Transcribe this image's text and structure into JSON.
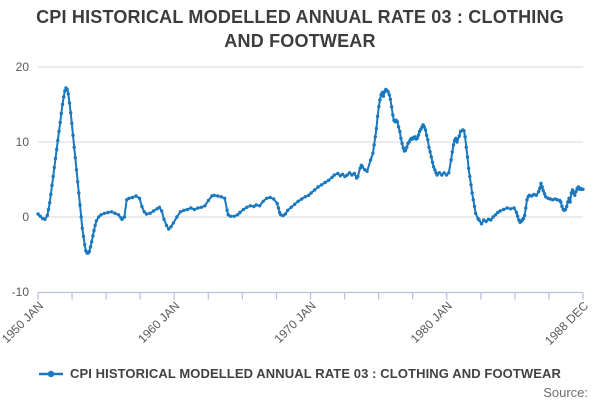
{
  "header": {
    "title_line1": "CPI HISTORICAL MODELLED ANNUAL RATE 03 : CLOTHING",
    "title_line2": "AND FOOTWEAR"
  },
  "legend": {
    "label": "CPI HISTORICAL MODELLED ANNUAL RATE 03 : CLOTHING AND FOOTWEAR"
  },
  "source_label": "Source:",
  "chart_data": {
    "type": "line",
    "title": "CPI HISTORICAL MODELLED ANNUAL RATE 03 : CLOTHING AND FOOTWEAR",
    "x_axis": {
      "start_label": "1950 JAN",
      "end_label": "1988 DEC",
      "months_total": 467,
      "tick_count": 17,
      "tick_labels_by_index": {
        "0": "1950 JAN",
        "4": "1960 JAN",
        "8": "1970 JAN",
        "12": "1980 JAN",
        "16": "1988 DEC"
      }
    },
    "y_axis": {
      "min": -10,
      "max": 20,
      "tick_values": [
        20,
        10,
        0,
        -10
      ],
      "gridline_values": [
        20,
        10,
        0
      ]
    },
    "colors": {
      "line": "#1978be",
      "grid": "#d9d9d9",
      "axis": "#b7c3dd",
      "axis_label": "#595959"
    },
    "series": [
      {
        "name": "CPI HISTORICAL MODELLED ANNUAL RATE 03 : CLOTHING AND FOOTWEAR",
        "x_unit": "months since 1950 JAN",
        "points": [
          [
            0,
            0.4
          ],
          [
            2,
            0.1
          ],
          [
            4,
            -0.2
          ],
          [
            6,
            -0.3
          ],
          [
            8,
            0.2
          ],
          [
            9,
            1
          ],
          [
            10,
            1.9
          ],
          [
            11,
            3
          ],
          [
            12,
            4.2
          ],
          [
            13,
            5.4
          ],
          [
            14,
            6.6
          ],
          [
            15,
            7.8
          ],
          [
            16,
            9
          ],
          [
            17,
            10.2
          ],
          [
            18,
            11.4
          ],
          [
            19,
            12.6
          ],
          [
            20,
            13.8
          ],
          [
            21,
            15
          ],
          [
            22,
            16
          ],
          [
            23,
            16.8
          ],
          [
            24,
            17.2
          ],
          [
            25,
            17
          ],
          [
            26,
            16.4
          ],
          [
            27,
            15.2
          ],
          [
            28,
            13.9
          ],
          [
            29,
            12.5
          ],
          [
            30,
            10.9
          ],
          [
            31,
            9.3
          ],
          [
            32,
            7.9
          ],
          [
            33,
            6.3
          ],
          [
            34,
            4.7
          ],
          [
            35,
            3.2
          ],
          [
            36,
            1.6
          ],
          [
            37,
            0
          ],
          [
            38,
            -1.5
          ],
          [
            39,
            -2.6
          ],
          [
            40,
            -3.7
          ],
          [
            41,
            -4.5
          ],
          [
            42,
            -4.8
          ],
          [
            43,
            -4.8
          ],
          [
            44,
            -4.6
          ],
          [
            45,
            -4
          ],
          [
            46,
            -3.3
          ],
          [
            47,
            -2.5
          ],
          [
            48,
            -1.8
          ],
          [
            49,
            -1.1
          ],
          [
            50,
            -0.5
          ],
          [
            52,
            0
          ],
          [
            54,
            0.3
          ],
          [
            57,
            0.5
          ],
          [
            60,
            0.6
          ],
          [
            63,
            0.7
          ],
          [
            66,
            0.5
          ],
          [
            69,
            0.3
          ],
          [
            71,
            -0.1
          ],
          [
            72,
            -0.3
          ],
          [
            74,
            0
          ],
          [
            76,
            2.3
          ],
          [
            78,
            2.5
          ],
          [
            81,
            2.6
          ],
          [
            84,
            2.8
          ],
          [
            87,
            2.5
          ],
          [
            89,
            1.4
          ],
          [
            91,
            0.7
          ],
          [
            93,
            0.4
          ],
          [
            96,
            0.5
          ],
          [
            99,
            0.8
          ],
          [
            102,
            1.1
          ],
          [
            104,
            1.3
          ],
          [
            106,
            0.8
          ],
          [
            108,
            -0.3
          ],
          [
            110,
            -1.1
          ],
          [
            112,
            -1.6
          ],
          [
            114,
            -1.3
          ],
          [
            116,
            -0.8
          ],
          [
            119,
            0
          ],
          [
            122,
            0.7
          ],
          [
            125,
            0.9
          ],
          [
            128,
            1
          ],
          [
            131,
            1.2
          ],
          [
            134,
            1
          ],
          [
            137,
            1.2
          ],
          [
            140,
            1.3
          ],
          [
            143,
            1.5
          ],
          [
            146,
            2.2
          ],
          [
            149,
            2.8
          ],
          [
            151,
            2.9
          ],
          [
            154,
            2.8
          ],
          [
            157,
            2.7
          ],
          [
            160,
            2.5
          ],
          [
            162,
            0.9
          ],
          [
            163,
            0.3
          ],
          [
            165,
            0.1
          ],
          [
            168,
            0.1
          ],
          [
            171,
            0.3
          ],
          [
            173,
            0.6
          ],
          [
            176,
            1
          ],
          [
            179,
            1.3
          ],
          [
            182,
            1.5
          ],
          [
            185,
            1.4
          ],
          [
            187,
            1.6
          ],
          [
            190,
            1.5
          ],
          [
            193,
            2.1
          ],
          [
            196,
            2.5
          ],
          [
            199,
            2.6
          ],
          [
            202,
            2.4
          ],
          [
            205,
            1.8
          ],
          [
            206,
            1.2
          ],
          [
            207,
            0.6
          ],
          [
            208,
            0.3
          ],
          [
            210,
            0.2
          ],
          [
            212,
            0.4
          ],
          [
            214,
            0.9
          ],
          [
            217,
            1.3
          ],
          [
            220,
            1.7
          ],
          [
            223,
            2.1
          ],
          [
            226,
            2.4
          ],
          [
            229,
            2.7
          ],
          [
            232,
            2.9
          ],
          [
            234,
            3.2
          ],
          [
            237,
            3.6
          ],
          [
            240,
            4
          ],
          [
            243,
            4.3
          ],
          [
            246,
            4.6
          ],
          [
            249,
            4.9
          ],
          [
            252,
            5.3
          ],
          [
            254,
            5.6
          ],
          [
            257,
            5.8
          ],
          [
            259,
            5.5
          ],
          [
            261,
            5.7
          ],
          [
            263,
            5.4
          ],
          [
            265,
            5.6
          ],
          [
            267,
            5.9
          ],
          [
            269,
            5.6
          ],
          [
            271,
            5.8
          ],
          [
            273,
            5.2
          ],
          [
            274,
            5.4
          ],
          [
            276,
            6.5
          ],
          [
            277,
            6.9
          ],
          [
            278,
            6.7
          ],
          [
            280,
            6.3
          ],
          [
            282,
            6.1
          ],
          [
            285,
            7.6
          ],
          [
            287,
            8.5
          ],
          [
            288,
            9.6
          ],
          [
            289,
            10.7
          ],
          [
            290,
            11.8
          ],
          [
            291,
            13.4
          ],
          [
            292,
            14.7
          ],
          [
            293,
            15.6
          ],
          [
            294,
            16.3
          ],
          [
            295,
            16.6
          ],
          [
            296,
            16.1
          ],
          [
            297,
            16.7
          ],
          [
            298,
            17
          ],
          [
            299,
            16.9
          ],
          [
            300,
            16.7
          ],
          [
            301,
            16.3
          ],
          [
            302,
            15.7
          ],
          [
            303,
            14.7
          ],
          [
            304,
            13.6
          ],
          [
            305,
            12.9
          ],
          [
            306,
            12.7
          ],
          [
            307,
            12.9
          ],
          [
            308,
            12.7
          ],
          [
            309,
            12
          ],
          [
            310,
            11.4
          ],
          [
            311,
            10.5
          ],
          [
            312,
            9.8
          ],
          [
            313,
            9.2
          ],
          [
            314,
            8.8
          ],
          [
            315,
            8.9
          ],
          [
            316,
            9.3
          ],
          [
            317,
            9.8
          ],
          [
            318,
            10
          ],
          [
            319,
            10.3
          ],
          [
            320,
            10.5
          ],
          [
            321,
            10.4
          ],
          [
            322,
            10.6
          ],
          [
            323,
            10.7
          ],
          [
            324,
            10.4
          ],
          [
            325,
            10.5
          ],
          [
            326,
            10.9
          ],
          [
            327,
            11.4
          ],
          [
            328,
            11.7
          ],
          [
            329,
            12
          ],
          [
            330,
            12.3
          ],
          [
            331,
            12
          ],
          [
            332,
            11.6
          ],
          [
            333,
            10.9
          ],
          [
            334,
            10.3
          ],
          [
            335,
            9.3
          ],
          [
            336,
            8.7
          ],
          [
            337,
            8
          ],
          [
            338,
            7.3
          ],
          [
            339,
            6.7
          ],
          [
            340,
            6.3
          ],
          [
            341,
            5.9
          ],
          [
            342,
            5.6
          ],
          [
            344,
            5.9
          ],
          [
            346,
            5.6
          ],
          [
            348,
            5.9
          ],
          [
            350,
            5.6
          ],
          [
            352,
            5.9
          ],
          [
            354,
            7.6
          ],
          [
            355,
            8.7
          ],
          [
            356,
            9.6
          ],
          [
            357,
            10.2
          ],
          [
            358,
            10.5
          ],
          [
            359,
            10
          ],
          [
            361,
            10.8
          ],
          [
            362,
            11.4
          ],
          [
            364,
            11.6
          ],
          [
            365,
            11.5
          ],
          [
            366,
            10.7
          ],
          [
            367,
            9.3
          ],
          [
            368,
            8
          ],
          [
            369,
            6.5
          ],
          [
            370,
            5.4
          ],
          [
            371,
            4.3
          ],
          [
            372,
            3.2
          ],
          [
            373,
            2.3
          ],
          [
            374,
            1.4
          ],
          [
            375,
            0.5
          ],
          [
            377,
            -0.2
          ],
          [
            378,
            -0.4
          ],
          [
            380,
            -0.9
          ],
          [
            382,
            -0.4
          ],
          [
            384,
            -0.6
          ],
          [
            386,
            -0.3
          ],
          [
            388,
            -0.4
          ],
          [
            390,
            0
          ],
          [
            392,
            0.3
          ],
          [
            394,
            0.6
          ],
          [
            396,
            0.8
          ],
          [
            399,
            1
          ],
          [
            402,
            1.2
          ],
          [
            405,
            1.1
          ],
          [
            408,
            1.2
          ],
          [
            410,
            0.6
          ],
          [
            411,
            0.1
          ],
          [
            412,
            -0.4
          ],
          [
            413,
            -0.7
          ],
          [
            414,
            -0.6
          ],
          [
            415,
            -0.4
          ],
          [
            416,
            -0.2
          ],
          [
            417,
            0.2
          ],
          [
            418,
            1.2
          ],
          [
            419,
            2.3
          ],
          [
            420,
            2.7
          ],
          [
            421,
            2.9
          ],
          [
            423,
            2.8
          ],
          [
            425,
            3
          ],
          [
            427,
            2.9
          ],
          [
            429,
            3.4
          ],
          [
            430,
            3.8
          ],
          [
            431,
            4.5
          ],
          [
            432,
            4
          ],
          [
            433,
            3.5
          ],
          [
            434,
            3.1
          ],
          [
            435,
            2.7
          ],
          [
            437,
            2.5
          ],
          [
            439,
            2.4
          ],
          [
            441,
            2.3
          ],
          [
            443,
            2.4
          ],
          [
            445,
            2.3
          ],
          [
            447,
            2.2
          ],
          [
            448,
            2
          ],
          [
            449,
            1.4
          ],
          [
            450,
            1
          ],
          [
            451,
            0.9
          ],
          [
            452,
            1
          ],
          [
            453,
            1.4
          ],
          [
            454,
            2
          ],
          [
            455,
            2.5
          ],
          [
            456,
            2
          ],
          [
            457,
            3.2
          ],
          [
            458,
            3.6
          ],
          [
            459,
            3.2
          ],
          [
            460,
            2.9
          ],
          [
            461,
            3.4
          ],
          [
            462,
            3.8
          ],
          [
            463,
            4
          ],
          [
            464,
            3.7
          ],
          [
            465,
            3.8
          ],
          [
            466,
            3.7
          ],
          [
            467,
            3.7
          ]
        ]
      }
    ]
  }
}
